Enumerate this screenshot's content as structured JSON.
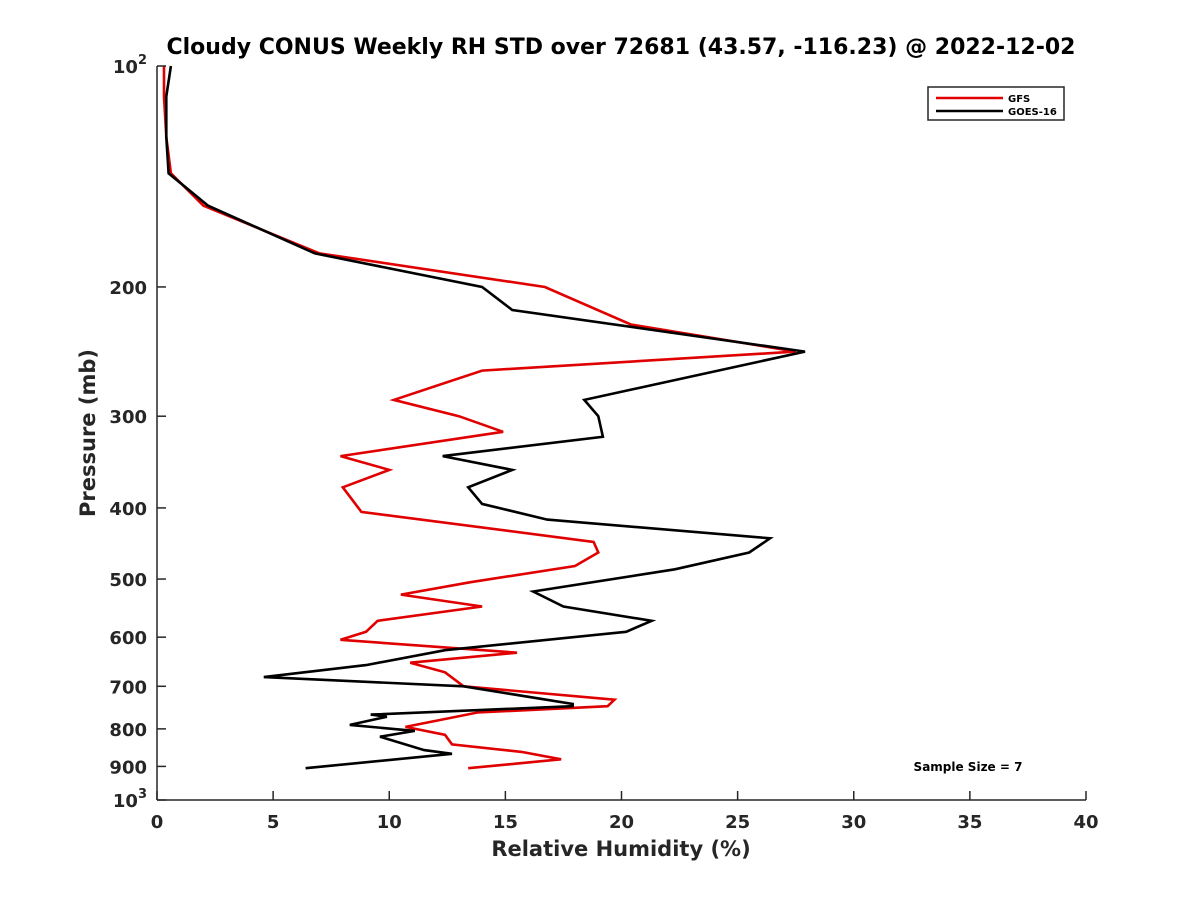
{
  "chart_data": {
    "type": "line",
    "title": "Cloudy CONUS Weekly RH STD over 72681 (43.57, -116.23) @ 2022-12-02",
    "xlabel": "Relative Humidity (%)",
    "ylabel": "Pressure (mb)",
    "xlim": [
      0,
      40
    ],
    "ylim": [
      100,
      1000
    ],
    "y_scale": "log",
    "y_reversed": true,
    "grid": false,
    "x_ticks": [
      "0",
      "5",
      "10",
      "15",
      "20",
      "25",
      "30",
      "35",
      "40"
    ],
    "y_ticks": [
      {
        "value": 100,
        "base": "10",
        "exp": "2"
      },
      {
        "value": 200,
        "label": "200"
      },
      {
        "value": 300,
        "label": "300"
      },
      {
        "value": 400,
        "label": "400"
      },
      {
        "value": 500,
        "label": "500"
      },
      {
        "value": 600,
        "label": "600"
      },
      {
        "value": 700,
        "label": "700"
      },
      {
        "value": 800,
        "label": "800"
      },
      {
        "value": 900,
        "label": "900"
      },
      {
        "value": 1000,
        "base": "10",
        "exp": "3"
      }
    ],
    "legend_position": "top-right",
    "annotation": "Sample Size = 7",
    "series": [
      {
        "name": "GFS",
        "color": "#e00000",
        "points": [
          [
            0.3,
            100
          ],
          [
            0.3,
            110
          ],
          [
            0.4,
            125
          ],
          [
            0.6,
            140
          ],
          [
            2.0,
            155
          ],
          [
            7.0,
            180
          ],
          [
            16.7,
            200
          ],
          [
            20.4,
            225
          ],
          [
            27.5,
            245
          ],
          [
            14.0,
            260
          ],
          [
            10.2,
            285
          ],
          [
            13.0,
            300
          ],
          [
            14.9,
            315
          ],
          [
            7.9,
            340
          ],
          [
            10.0,
            355
          ],
          [
            8.0,
            375
          ],
          [
            8.8,
            405
          ],
          [
            18.8,
            445
          ],
          [
            19.0,
            460
          ],
          [
            18.0,
            480
          ],
          [
            13.5,
            505
          ],
          [
            10.5,
            525
          ],
          [
            14.0,
            545
          ],
          [
            9.5,
            570
          ],
          [
            9.0,
            590
          ],
          [
            7.9,
            605
          ],
          [
            15.5,
            630
          ],
          [
            10.9,
            650
          ],
          [
            12.4,
            670
          ],
          [
            13.2,
            700
          ],
          [
            19.7,
            730
          ],
          [
            19.4,
            745
          ],
          [
            13.8,
            760
          ],
          [
            10.7,
            795
          ],
          [
            12.4,
            815
          ],
          [
            12.7,
            840
          ],
          [
            15.7,
            860
          ],
          [
            17.4,
            880
          ],
          [
            13.4,
            905
          ]
        ]
      },
      {
        "name": "GOES-16",
        "color": "#000000",
        "points": [
          [
            0.6,
            100
          ],
          [
            0.4,
            110
          ],
          [
            0.4,
            125
          ],
          [
            0.5,
            140
          ],
          [
            2.2,
            155
          ],
          [
            6.8,
            180
          ],
          [
            14.0,
            200
          ],
          [
            15.3,
            215
          ],
          [
            27.9,
            245
          ],
          [
            21.8,
            270
          ],
          [
            18.4,
            285
          ],
          [
            19.0,
            300
          ],
          [
            19.2,
            320
          ],
          [
            12.3,
            340
          ],
          [
            15.3,
            355
          ],
          [
            13.4,
            375
          ],
          [
            14.0,
            395
          ],
          [
            16.8,
            415
          ],
          [
            26.4,
            440
          ],
          [
            25.5,
            460
          ],
          [
            22.3,
            485
          ],
          [
            16.2,
            520
          ],
          [
            17.5,
            545
          ],
          [
            21.3,
            570
          ],
          [
            20.2,
            590
          ],
          [
            12.4,
            625
          ],
          [
            9.0,
            655
          ],
          [
            4.6,
            680
          ],
          [
            13.2,
            700
          ],
          [
            17.9,
            740
          ],
          [
            17.9,
            745
          ],
          [
            9.2,
            765
          ],
          [
            9.9,
            770
          ],
          [
            8.3,
            790
          ],
          [
            11.1,
            805
          ],
          [
            9.6,
            820
          ],
          [
            11.5,
            855
          ],
          [
            12.7,
            865
          ],
          [
            6.4,
            905
          ]
        ]
      }
    ]
  }
}
